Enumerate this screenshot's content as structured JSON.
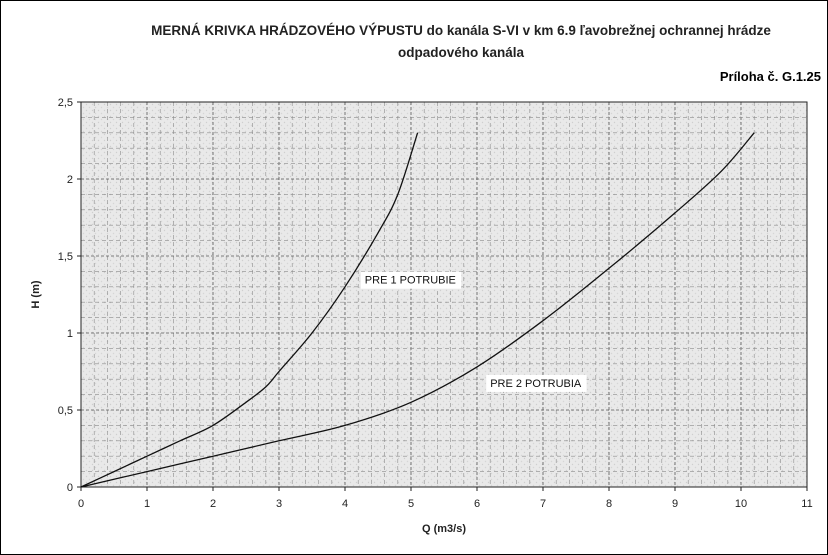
{
  "title_line1": "MERNÁ KRIVKA HRÁDZOVÉHO VÝPUSTU do kanála S-VI v  km 6.9 ľavobrežnej ochrannej hrádze",
  "title_line2": "odpadového kanála",
  "annex": "Príloha č. G.1.25",
  "chart_data": {
    "type": "line",
    "title": "MERNÁ KRIVKA HRÁDZOVÉHO VÝPUSTU do kanála S-VI v  km 6.9 ľavobrežnej ochrannej hrádze odpadového kanála",
    "xlabel": "Q (m3/s)",
    "ylabel": "H (m)",
    "xlim": [
      0,
      11
    ],
    "ylim": [
      0,
      2.5
    ],
    "x_ticks": [
      "0",
      "1",
      "2",
      "3",
      "4",
      "5",
      "6",
      "7",
      "8",
      "9",
      "10",
      "11"
    ],
    "y_ticks": [
      "0",
      "0,5",
      "1",
      "1,5",
      "2",
      "2,5"
    ],
    "grid": true,
    "legend": "none",
    "series": [
      {
        "name": "PRE 1 POTRUBIE",
        "points": [
          [
            0,
            0
          ],
          [
            0.5,
            0.1
          ],
          [
            1,
            0.2
          ],
          [
            1.5,
            0.3
          ],
          [
            2,
            0.4
          ],
          [
            2.5,
            0.55
          ],
          [
            2.8,
            0.65
          ],
          [
            3,
            0.75
          ],
          [
            3.5,
            1.0
          ],
          [
            4,
            1.3
          ],
          [
            4.5,
            1.65
          ],
          [
            4.8,
            1.9
          ],
          [
            5.1,
            2.3
          ]
        ],
        "label_at": [
          4.3,
          1.32
        ]
      },
      {
        "name": "PRE 2 POTRUBIA",
        "points": [
          [
            0,
            0
          ],
          [
            1,
            0.1
          ],
          [
            2,
            0.2
          ],
          [
            3,
            0.3
          ],
          [
            4,
            0.4
          ],
          [
            5,
            0.55
          ],
          [
            6,
            0.78
          ],
          [
            7,
            1.08
          ],
          [
            8,
            1.42
          ],
          [
            9,
            1.78
          ],
          [
            9.7,
            2.05
          ],
          [
            10.2,
            2.3
          ]
        ],
        "label_at": [
          6.2,
          0.65
        ]
      }
    ]
  }
}
